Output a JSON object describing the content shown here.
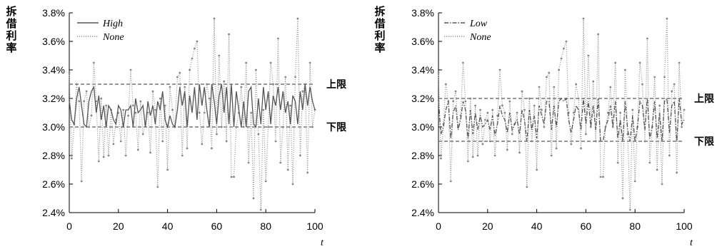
{
  "chart_data": [
    {
      "type": "line",
      "ylabel": "拆借利率",
      "xlabel": "t",
      "xlim": [
        0,
        100
      ],
      "ylim": [
        0.024,
        0.038
      ],
      "xticks": [
        "0",
        "20",
        "40",
        "60",
        "80",
        "100"
      ],
      "yticks": [
        "2.4%",
        "2.6%",
        "2.8%",
        "3.0%",
        "3.2%",
        "3.4%",
        "3.6%",
        "3.8%"
      ],
      "bounds": [
        {
          "label": "上限",
          "value": 0.033
        },
        {
          "label": "下限",
          "value": 0.03
        }
      ],
      "legend_placement": "top-left",
      "series": [
        {
          "name": "High",
          "style": "solid",
          "color": "#555555",
          "values": [
            0.0318,
            0.0305,
            0.0302,
            0.032,
            0.0328,
            0.0315,
            0.0302,
            0.03,
            0.0318,
            0.0325,
            0.0328,
            0.031,
            0.0322,
            0.0305,
            0.0315,
            0.03,
            0.0315,
            0.0312,
            0.0305,
            0.0302,
            0.0315,
            0.0312,
            0.03,
            0.0312,
            0.0312,
            0.0315,
            0.03,
            0.032,
            0.031,
            0.0312,
            0.0315,
            0.03,
            0.0318,
            0.0308,
            0.0315,
            0.0302,
            0.0318,
            0.0312,
            0.0325,
            0.0305,
            0.03,
            0.0308,
            0.0302,
            0.03,
            0.0312,
            0.0328,
            0.0315,
            0.0325,
            0.03,
            0.0322,
            0.031,
            0.0328,
            0.0305,
            0.033,
            0.0315,
            0.0328,
            0.0312,
            0.03,
            0.033,
            0.0318,
            0.0302,
            0.0322,
            0.033,
            0.031,
            0.0328,
            0.0302,
            0.033,
            0.03,
            0.0325,
            0.0312,
            0.03,
            0.0318,
            0.03,
            0.0325,
            0.0328,
            0.0302,
            0.03,
            0.032,
            0.0302,
            0.0328,
            0.0312,
            0.0325,
            0.0302,
            0.0322,
            0.0315,
            0.0328,
            0.0312,
            0.0325,
            0.031,
            0.0318,
            0.0302,
            0.0322,
            0.0318,
            0.0302,
            0.0325,
            0.0312,
            0.033,
            0.0315,
            0.0328,
            0.0318,
            0.0312
          ]
        },
        {
          "name": "None",
          "style": "dotted",
          "color": "#999999",
          "values": [
            0.0338,
            0.0278,
            0.0302,
            0.033,
            0.0318,
            0.0262,
            0.0318,
            0.0325,
            0.03,
            0.0308,
            0.0345,
            0.0318,
            0.0276,
            0.032,
            0.0279,
            0.0315,
            0.028,
            0.0312,
            0.0288,
            0.0305,
            0.031,
            0.029,
            0.0312,
            0.028,
            0.0308,
            0.034,
            0.0315,
            0.031,
            0.0284,
            0.0318,
            0.0295,
            0.0302,
            0.031,
            0.0282,
            0.0325,
            0.0312,
            0.0258,
            0.032,
            0.029,
            0.0315,
            0.027,
            0.0328,
            0.0312,
            0.03,
            0.0335,
            0.0338,
            0.028,
            0.0328,
            0.0285,
            0.034,
            0.0348,
            0.0355,
            0.036,
            0.031,
            0.0288,
            0.031,
            0.033,
            0.032,
            0.0285,
            0.0376,
            0.0295,
            0.035,
            0.03,
            0.0332,
            0.029,
            0.0365,
            0.0265,
            0.0265,
            0.03,
            0.031,
            0.0328,
            0.03,
            0.0345,
            0.0275,
            0.031,
            0.025,
            0.034,
            0.0295,
            0.0242,
            0.0312,
            0.0262,
            0.03,
            0.0345,
            0.033,
            0.029,
            0.0362,
            0.0275,
            0.03,
            0.0335,
            0.027,
            0.0315,
            0.026,
            0.0335,
            0.0376,
            0.028,
            0.0325,
            0.033,
            0.0268,
            0.0345,
            0.03,
            0.0312
          ]
        }
      ]
    },
    {
      "type": "line",
      "ylabel": "拆借利率",
      "xlabel": "t",
      "xlim": [
        0,
        100
      ],
      "ylim": [
        0.024,
        0.038
      ],
      "xticks": [
        "0",
        "20",
        "40",
        "60",
        "80",
        "100"
      ],
      "yticks": [
        "2.4%",
        "2.6%",
        "2.8%",
        "3.0%",
        "3.2%",
        "3.4%",
        "3.6%",
        "3.8%"
      ],
      "bounds": [
        {
          "label": "上限",
          "value": 0.032
        },
        {
          "label": "下限",
          "value": 0.029
        }
      ],
      "legend_placement": "top-left",
      "series": [
        {
          "name": "Low",
          "style": "dashdot",
          "color": "#555555",
          "values": [
            0.0318,
            0.0295,
            0.03,
            0.0312,
            0.0318,
            0.0292,
            0.031,
            0.0315,
            0.0298,
            0.0305,
            0.0318,
            0.0312,
            0.0292,
            0.0312,
            0.0295,
            0.031,
            0.0298,
            0.0308,
            0.03,
            0.0302,
            0.0305,
            0.0298,
            0.0308,
            0.0294,
            0.0302,
            0.0315,
            0.0308,
            0.0305,
            0.0296,
            0.031,
            0.0298,
            0.0302,
            0.0305,
            0.0295,
            0.0312,
            0.0305,
            0.029,
            0.0312,
            0.0298,
            0.0308,
            0.0292,
            0.0315,
            0.0308,
            0.0302,
            0.0318,
            0.0318,
            0.0298,
            0.0315,
            0.03,
            0.0318,
            0.032,
            0.0318,
            0.032,
            0.0305,
            0.0296,
            0.0305,
            0.0315,
            0.0312,
            0.0298,
            0.032,
            0.0302,
            0.0318,
            0.03,
            0.0315,
            0.0298,
            0.032,
            0.029,
            0.029,
            0.03,
            0.0305,
            0.0315,
            0.03,
            0.0318,
            0.0292,
            0.0305,
            0.029,
            0.0318,
            0.0298,
            0.029,
            0.0308,
            0.029,
            0.03,
            0.0318,
            0.0315,
            0.0298,
            0.032,
            0.0292,
            0.03,
            0.0318,
            0.0292,
            0.031,
            0.029,
            0.0318,
            0.032,
            0.0296,
            0.0315,
            0.0318,
            0.029,
            0.032,
            0.0302,
            0.0305
          ]
        },
        {
          "name": "None",
          "style": "dotted",
          "color": "#999999",
          "values": [
            0.0338,
            0.0278,
            0.0302,
            0.033,
            0.0318,
            0.0262,
            0.0318,
            0.0325,
            0.03,
            0.0308,
            0.0345,
            0.0318,
            0.0276,
            0.032,
            0.0279,
            0.0315,
            0.028,
            0.0312,
            0.0288,
            0.0305,
            0.031,
            0.029,
            0.0312,
            0.028,
            0.0308,
            0.034,
            0.0315,
            0.031,
            0.0284,
            0.0318,
            0.0295,
            0.0302,
            0.031,
            0.0282,
            0.0325,
            0.0312,
            0.0258,
            0.032,
            0.029,
            0.0315,
            0.027,
            0.0328,
            0.0312,
            0.03,
            0.0335,
            0.0338,
            0.028,
            0.0328,
            0.0285,
            0.034,
            0.0348,
            0.0355,
            0.036,
            0.031,
            0.0288,
            0.031,
            0.033,
            0.032,
            0.0285,
            0.0376,
            0.0295,
            0.035,
            0.03,
            0.0332,
            0.029,
            0.0365,
            0.0265,
            0.0265,
            0.03,
            0.031,
            0.0328,
            0.03,
            0.0345,
            0.0275,
            0.031,
            0.025,
            0.034,
            0.0295,
            0.0242,
            0.0312,
            0.0262,
            0.03,
            0.0345,
            0.033,
            0.029,
            0.0362,
            0.0275,
            0.03,
            0.0335,
            0.027,
            0.0315,
            0.026,
            0.0335,
            0.0376,
            0.028,
            0.0325,
            0.033,
            0.0268,
            0.0345,
            0.03,
            0.0312
          ]
        }
      ]
    }
  ]
}
